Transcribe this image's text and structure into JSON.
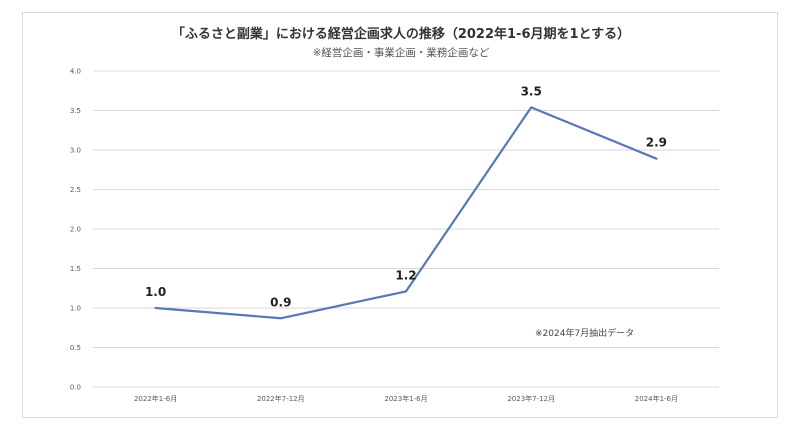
{
  "chart_data": {
    "type": "line",
    "title": "「ふるさと副業」における経営企画求人の推移（2022年1-6月期を1とする）",
    "subtitle": "※経営企画・事業企画・業務企画など",
    "categories": [
      "2022年1-6月",
      "2022年7-12月",
      "2023年1-6月",
      "2023年7-12月",
      "2024年1-6月"
    ],
    "series": [
      {
        "values": [
          1.0,
          0.87,
          1.21,
          3.54,
          2.89
        ]
      }
    ],
    "data_labels": [
      "1.0",
      "0.9",
      "1.2",
      "3.5",
      "2.9"
    ],
    "y_ticks": [
      "0.0",
      "0.5",
      "1.0",
      "1.5",
      "2.0",
      "2.5",
      "3.0",
      "3.5",
      "4.0"
    ],
    "ylim": [
      0,
      4
    ],
    "grid": true,
    "legend": "none",
    "annotation": "※2024年7月抽出データ",
    "colors": {
      "line": "#5877b8",
      "grid": "#d9d9d9"
    }
  }
}
